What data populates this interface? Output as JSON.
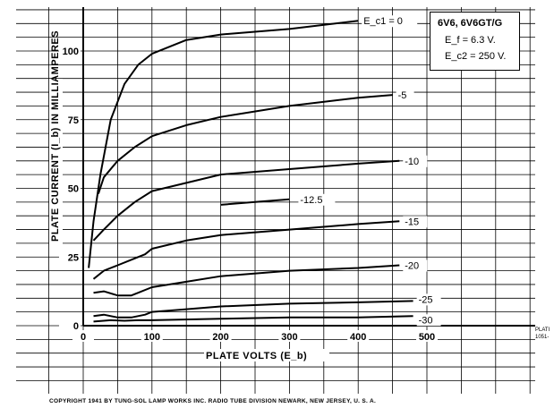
{
  "chart_data": {
    "type": "line",
    "title": "6V6, 6V6GT/G",
    "conditions": [
      "E_f = 6.3 V.",
      "E_c2 = 250 V."
    ],
    "xlabel": "PLATE VOLTS (E_b)",
    "ylabel": "PLATE CURRENT (I_b) IN MILLIAMPERES",
    "xlim": [
      0,
      500
    ],
    "ylim": [
      0,
      120
    ],
    "x_ticks": [
      0,
      100,
      200,
      300,
      400,
      500
    ],
    "y_ticks": [
      0,
      25,
      50,
      75,
      100
    ],
    "grid": true,
    "series": [
      {
        "name": "Ec1 = 0",
        "label": "E_c1 = 0",
        "points": [
          [
            8,
            21
          ],
          [
            15,
            38
          ],
          [
            25,
            55
          ],
          [
            40,
            75
          ],
          [
            60,
            88
          ],
          [
            80,
            95
          ],
          [
            100,
            99
          ],
          [
            150,
            104
          ],
          [
            200,
            106
          ],
          [
            300,
            108
          ],
          [
            400,
            111
          ]
        ]
      },
      {
        "name": "-5",
        "label": "-5",
        "points": [
          [
            22,
            48
          ],
          [
            30,
            54
          ],
          [
            50,
            60
          ],
          [
            75,
            65
          ],
          [
            100,
            69
          ],
          [
            150,
            73
          ],
          [
            200,
            76
          ],
          [
            300,
            80
          ],
          [
            400,
            83
          ],
          [
            450,
            84
          ]
        ]
      },
      {
        "name": "-10",
        "label": "-10",
        "points": [
          [
            15,
            31
          ],
          [
            30,
            35
          ],
          [
            50,
            40
          ],
          [
            75,
            45
          ],
          [
            100,
            49
          ],
          [
            150,
            52
          ],
          [
            200,
            55
          ],
          [
            300,
            57
          ],
          [
            400,
            59
          ],
          [
            460,
            60
          ]
        ]
      },
      {
        "name": "-12.5",
        "label": "-12.5",
        "points": [
          [
            200,
            44
          ],
          [
            250,
            45
          ],
          [
            300,
            46
          ]
        ]
      },
      {
        "name": "-15",
        "label": "-15",
        "points": [
          [
            15,
            17
          ],
          [
            30,
            20
          ],
          [
            50,
            22
          ],
          [
            70,
            24
          ],
          [
            90,
            26
          ],
          [
            100,
            28
          ],
          [
            150,
            31
          ],
          [
            200,
            33
          ],
          [
            300,
            35
          ],
          [
            400,
            37
          ],
          [
            460,
            38
          ]
        ]
      },
      {
        "name": "-20",
        "label": "-20",
        "points": [
          [
            15,
            12
          ],
          [
            30,
            12.5
          ],
          [
            50,
            11
          ],
          [
            70,
            11
          ],
          [
            80,
            12
          ],
          [
            100,
            14
          ],
          [
            150,
            16
          ],
          [
            200,
            18
          ],
          [
            300,
            20
          ],
          [
            400,
            21
          ],
          [
            460,
            22
          ]
        ]
      },
      {
        "name": "-25",
        "label": "-25",
        "points": [
          [
            15,
            3.5
          ],
          [
            30,
            4
          ],
          [
            50,
            3
          ],
          [
            70,
            3
          ],
          [
            90,
            4
          ],
          [
            100,
            5
          ],
          [
            150,
            6
          ],
          [
            200,
            7
          ],
          [
            300,
            8
          ],
          [
            400,
            8.5
          ],
          [
            480,
            9
          ]
        ]
      },
      {
        "name": "-30",
        "label": "-30",
        "points": [
          [
            15,
            1.5
          ],
          [
            40,
            2
          ],
          [
            60,
            1.8
          ],
          [
            80,
            2
          ],
          [
            100,
            2
          ],
          [
            200,
            2.5
          ],
          [
            300,
            3
          ],
          [
            400,
            3
          ],
          [
            480,
            3.5
          ]
        ]
      }
    ]
  },
  "header": {
    "tube_name": "6V6, 6V6GT/G",
    "ef": "E_f = 6.3 V.",
    "ec2": "E_c2 = 250 V."
  },
  "footer": {
    "copyright": "COPYRIGHT  1941  BY  TUNG-SOL LAMP WORKS INC.      RADIO TUBE DIVISION      NEWARK, NEW JERSEY, U. S. A."
  },
  "margin_notes": [
    "PLATI",
    "1051-"
  ]
}
